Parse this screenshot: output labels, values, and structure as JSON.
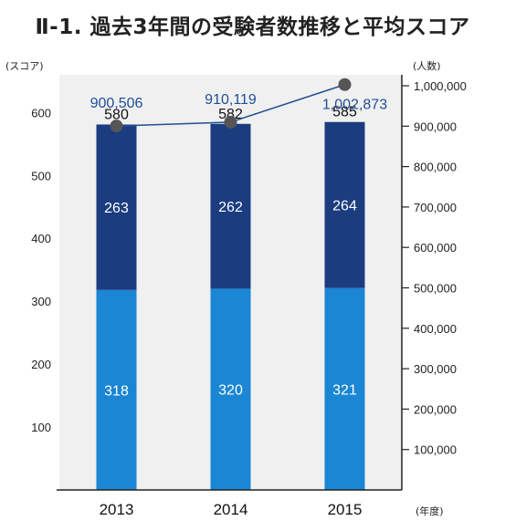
{
  "title": "Ⅱ-1. 過去3年間の受験者数推移と平均スコア",
  "chart_data": {
    "type": "bar",
    "categories": [
      "2013",
      "2014",
      "2015"
    ],
    "series": [
      {
        "values": [
          318,
          320,
          321
        ],
        "color": "#1a86d4"
      },
      {
        "values": [
          263,
          262,
          264
        ],
        "color": "#1b3c7f"
      }
    ],
    "totals": [
      580,
      582,
      585
    ],
    "total_labels": [
      "580",
      "582",
      "585"
    ],
    "segment_labels": [
      [
        "318",
        "320",
        "321"
      ],
      [
        "263",
        "262",
        "264"
      ]
    ],
    "left_axis": {
      "unit": "(スコア)",
      "ylim": [
        0,
        660
      ],
      "ticks": [
        100,
        200,
        300,
        400,
        500,
        600
      ],
      "tick_labels": [
        "100",
        "200",
        "300",
        "400",
        "500",
        "600"
      ]
    },
    "right_axis": {
      "unit": "(人数)",
      "ylim": [
        0,
        1000000
      ],
      "ticks": [
        100000,
        200000,
        300000,
        400000,
        500000,
        600000,
        700000,
        800000,
        900000,
        1000000
      ],
      "tick_labels": [
        "100,000",
        "200,000",
        "300,000",
        "400,000",
        "500,000",
        "600,000",
        "700,000",
        "800,000",
        "900,000",
        "1,000,000"
      ]
    },
    "x_unit": "(年度)",
    "line": {
      "values": [
        900506,
        910119,
        1002873
      ],
      "labels": [
        "900,506",
        "910,119",
        "1,002,873"
      ],
      "line_color": "#1f4e96",
      "marker_color": "#555555"
    },
    "plot_background": "#f0f0f0"
  }
}
